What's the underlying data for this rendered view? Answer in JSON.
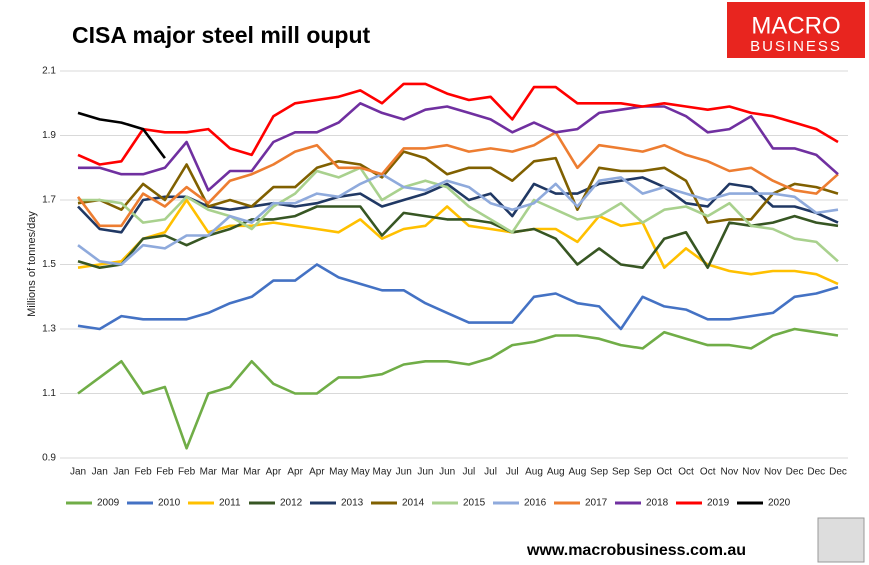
{
  "chart_data": {
    "type": "line",
    "title": "CISA major steel mill ouput",
    "y_label": "Millions of tonnes/day",
    "logo": {
      "line1": "MACRO",
      "line2": "BUSINESS"
    },
    "footer": "www.macrobusiness.com.au",
    "categories": [
      "Jan",
      "Jan",
      "Jan",
      "Feb",
      "Feb",
      "Feb",
      "Mar",
      "Mar",
      "Mar",
      "Apr",
      "Apr",
      "Apr",
      "May",
      "May",
      "May",
      "Jun",
      "Jun",
      "Jun",
      "Jul",
      "Jul",
      "Jul",
      "Aug",
      "Aug",
      "Aug",
      "Sep",
      "Sep",
      "Sep",
      "Oct",
      "Oct",
      "Oct",
      "Nov",
      "Nov",
      "Nov",
      "Dec",
      "Dec",
      "Dec"
    ],
    "ylim": [
      0.9,
      2.1
    ],
    "yticks": [
      0.9,
      1.1,
      1.3,
      1.5,
      1.7,
      1.9,
      2.1
    ],
    "grid": true,
    "legend": "bottom",
    "series": [
      {
        "name": "2009",
        "color": "#70ad47",
        "values": [
          1.1,
          1.15,
          1.2,
          1.1,
          1.12,
          0.93,
          1.1,
          1.12,
          1.2,
          1.13,
          1.1,
          1.1,
          1.15,
          1.15,
          1.16,
          1.19,
          1.2,
          1.2,
          1.19,
          1.21,
          1.25,
          1.26,
          1.28,
          1.28,
          1.27,
          1.25,
          1.24,
          1.29,
          1.27,
          1.25,
          1.25,
          1.24,
          1.28,
          1.3,
          1.29,
          1.28
        ]
      },
      {
        "name": "2010",
        "color": "#4472c4",
        "values": [
          1.31,
          1.3,
          1.34,
          1.33,
          1.33,
          1.33,
          1.35,
          1.38,
          1.4,
          1.45,
          1.45,
          1.5,
          1.46,
          1.44,
          1.42,
          1.42,
          1.38,
          1.35,
          1.32,
          1.32,
          1.32,
          1.4,
          1.41,
          1.38,
          1.37,
          1.3,
          1.4,
          1.37,
          1.36,
          1.33,
          1.33,
          1.34,
          1.35,
          1.4,
          1.41,
          1.43
        ]
      },
      {
        "name": "2011",
        "color": "#ffc000",
        "values": [
          1.49,
          1.5,
          1.51,
          1.58,
          1.6,
          1.7,
          1.6,
          1.62,
          1.62,
          1.63,
          1.62,
          1.61,
          1.6,
          1.64,
          1.58,
          1.61,
          1.62,
          1.68,
          1.62,
          1.61,
          1.6,
          1.61,
          1.61,
          1.57,
          1.65,
          1.62,
          1.63,
          1.49,
          1.55,
          1.5,
          1.48,
          1.47,
          1.48,
          1.48,
          1.47,
          1.44
        ]
      },
      {
        "name": "2012",
        "color": "#375623",
        "values": [
          1.51,
          1.49,
          1.5,
          1.58,
          1.59,
          1.56,
          1.59,
          1.61,
          1.64,
          1.64,
          1.65,
          1.68,
          1.68,
          1.68,
          1.59,
          1.66,
          1.65,
          1.64,
          1.64,
          1.63,
          1.6,
          1.61,
          1.58,
          1.5,
          1.55,
          1.5,
          1.49,
          1.58,
          1.6,
          1.49,
          1.63,
          1.62,
          1.63,
          1.65,
          1.63,
          1.62
        ]
      },
      {
        "name": "2013",
        "color": "#203864",
        "values": [
          1.68,
          1.61,
          1.6,
          1.7,
          1.71,
          1.71,
          1.68,
          1.67,
          1.68,
          1.69,
          1.68,
          1.69,
          1.71,
          1.72,
          1.68,
          1.7,
          1.72,
          1.75,
          1.7,
          1.72,
          1.65,
          1.75,
          1.72,
          1.72,
          1.75,
          1.76,
          1.77,
          1.74,
          1.69,
          1.68,
          1.75,
          1.74,
          1.68,
          1.68,
          1.66,
          1.63
        ]
      },
      {
        "name": "2014",
        "color": "#806000",
        "values": [
          1.69,
          1.7,
          1.67,
          1.75,
          1.7,
          1.81,
          1.68,
          1.7,
          1.68,
          1.74,
          1.74,
          1.8,
          1.82,
          1.81,
          1.77,
          1.85,
          1.83,
          1.78,
          1.8,
          1.8,
          1.76,
          1.82,
          1.83,
          1.67,
          1.8,
          1.79,
          1.79,
          1.8,
          1.76,
          1.63,
          1.64,
          1.64,
          1.72,
          1.75,
          1.74,
          1.72
        ]
      },
      {
        "name": "2015",
        "color": "#a9d18e",
        "values": [
          1.7,
          1.7,
          1.69,
          1.63,
          1.64,
          1.71,
          1.67,
          1.65,
          1.61,
          1.68,
          1.72,
          1.79,
          1.77,
          1.8,
          1.7,
          1.74,
          1.76,
          1.74,
          1.68,
          1.64,
          1.6,
          1.7,
          1.67,
          1.64,
          1.65,
          1.69,
          1.63,
          1.67,
          1.68,
          1.65,
          1.69,
          1.62,
          1.61,
          1.58,
          1.57,
          1.51
        ]
      },
      {
        "name": "2016",
        "color": "#8faadc",
        "values": [
          1.56,
          1.51,
          1.5,
          1.56,
          1.55,
          1.59,
          1.59,
          1.65,
          1.63,
          1.69,
          1.69,
          1.72,
          1.71,
          1.75,
          1.78,
          1.74,
          1.73,
          1.76,
          1.74,
          1.69,
          1.67,
          1.69,
          1.75,
          1.68,
          1.76,
          1.77,
          1.72,
          1.74,
          1.72,
          1.7,
          1.72,
          1.72,
          1.72,
          1.71,
          1.66,
          1.67
        ]
      },
      {
        "name": "2017",
        "color": "#ed7d31",
        "values": [
          1.71,
          1.62,
          1.62,
          1.72,
          1.68,
          1.74,
          1.69,
          1.76,
          1.78,
          1.81,
          1.85,
          1.87,
          1.8,
          1.8,
          1.78,
          1.86,
          1.86,
          1.87,
          1.85,
          1.86,
          1.85,
          1.87,
          1.91,
          1.8,
          1.87,
          1.86,
          1.85,
          1.87,
          1.84,
          1.82,
          1.79,
          1.8,
          1.76,
          1.73,
          1.72,
          1.78
        ]
      },
      {
        "name": "2018",
        "color": "#7030a0",
        "values": [
          1.8,
          1.8,
          1.78,
          1.78,
          1.8,
          1.88,
          1.73,
          1.79,
          1.79,
          1.88,
          1.91,
          1.91,
          1.94,
          2.0,
          1.97,
          1.95,
          1.98,
          1.99,
          1.97,
          1.95,
          1.91,
          1.94,
          1.91,
          1.92,
          1.97,
          1.98,
          1.99,
          1.99,
          1.96,
          1.91,
          1.92,
          1.96,
          1.86,
          1.86,
          1.84,
          1.78
        ]
      },
      {
        "name": "2019",
        "color": "#ff0000",
        "values": [
          1.84,
          1.81,
          1.82,
          1.92,
          1.91,
          1.91,
          1.92,
          1.86,
          1.84,
          1.96,
          2.0,
          2.01,
          2.02,
          2.04,
          2.0,
          2.06,
          2.06,
          2.03,
          2.01,
          2.02,
          1.95,
          2.05,
          2.05,
          2.0,
          2.0,
          2.0,
          1.99,
          2.0,
          1.99,
          1.98,
          1.99,
          1.97,
          1.96,
          1.94,
          1.92,
          1.88
        ]
      },
      {
        "name": "2020",
        "color": "#000000",
        "values": [
          1.97,
          1.95,
          1.94,
          1.92,
          1.83,
          null,
          null,
          null,
          null,
          null,
          null,
          null,
          null,
          null,
          null,
          null,
          null,
          null,
          null,
          null,
          null,
          null,
          null,
          null,
          null,
          null,
          null,
          null,
          null,
          null,
          null,
          null,
          null,
          null,
          null,
          null
        ]
      }
    ]
  }
}
